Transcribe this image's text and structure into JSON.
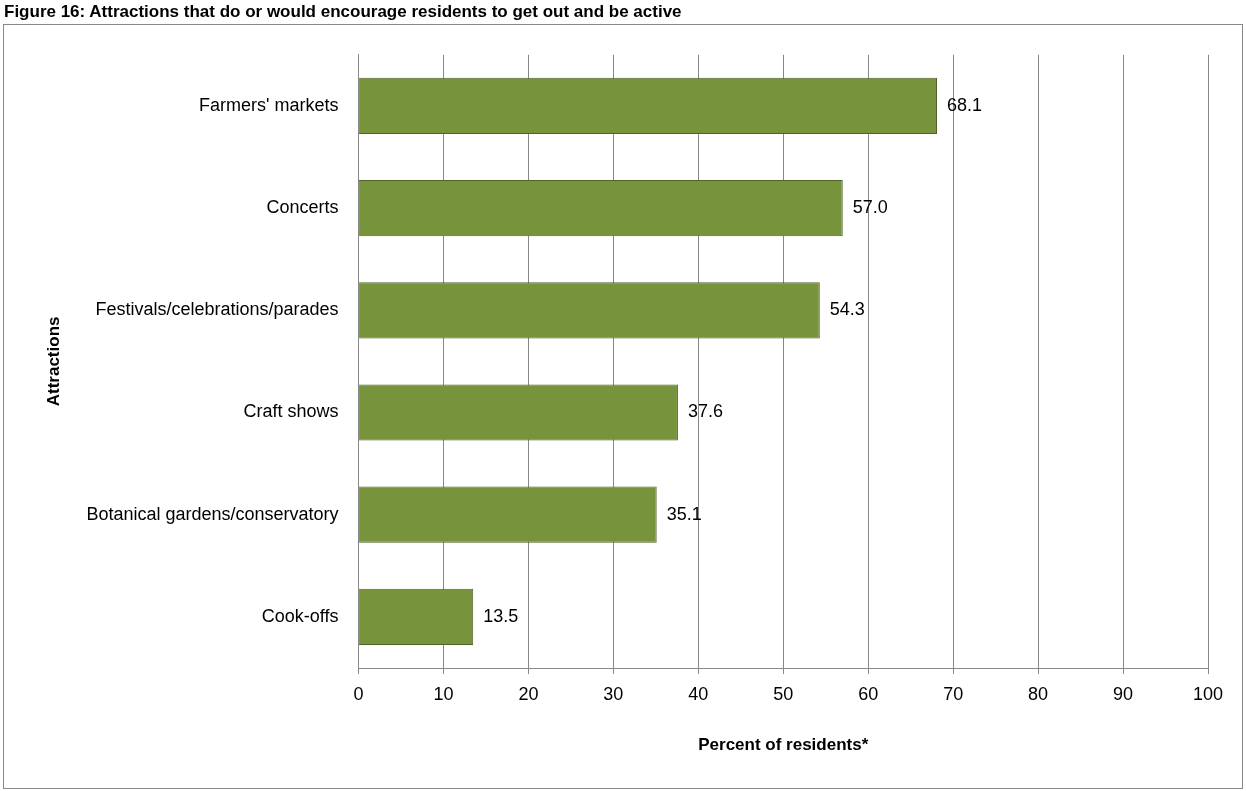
{
  "chart_data": {
    "type": "bar",
    "orientation": "horizontal",
    "title": "Figure 16: Attractions that do or would encourage residents to get out and be active",
    "xlabel": "Percent of residents*",
    "ylabel": "Attractions",
    "categories": [
      "Farmers' markets",
      "Concerts",
      "Festivals/celebrations/parades",
      "Craft shows",
      "Botanical gardens/conservatory",
      "Cook-offs"
    ],
    "values": [
      68.1,
      57.0,
      54.3,
      37.6,
      35.1,
      13.5
    ],
    "value_labels": [
      "68.1",
      "57.0",
      "54.3",
      "37.6",
      "35.1",
      "13.5"
    ],
    "color": "#77933c",
    "xlim": [
      0,
      100
    ],
    "xticks": [
      0,
      10,
      20,
      30,
      40,
      50,
      60,
      70,
      80,
      90,
      100
    ],
    "grid": "x",
    "legend": false
  }
}
